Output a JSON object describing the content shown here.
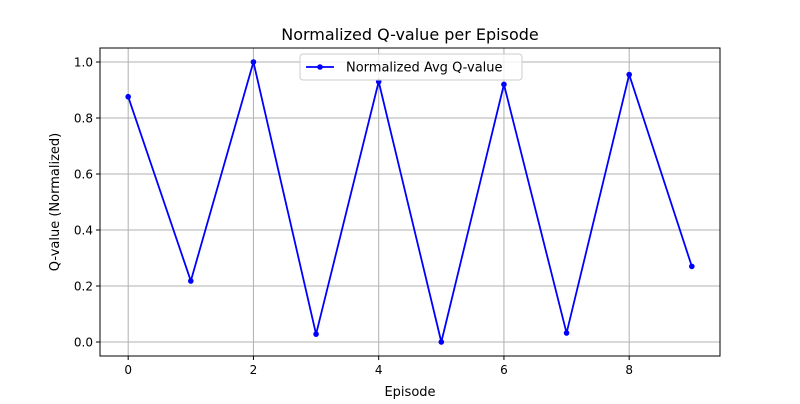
{
  "chart_data": {
    "type": "line",
    "title": "Normalized Q-value per Episode",
    "xlabel": "Episode",
    "ylabel": "Q-value (Normalized)",
    "xlim": [
      -0.45,
      9.45
    ],
    "ylim": [
      -0.05,
      1.05
    ],
    "x_ticks": [
      0,
      2,
      4,
      6,
      8
    ],
    "y_ticks": [
      0.0,
      0.2,
      0.4,
      0.6,
      0.8,
      1.0
    ],
    "x_tick_labels": [
      "0",
      "2",
      "4",
      "6",
      "8"
    ],
    "y_tick_labels": [
      "0.0",
      "0.2",
      "0.4",
      "0.6",
      "0.8",
      "1.0"
    ],
    "grid": true,
    "legend_position": "upper center",
    "series": [
      {
        "name": "Normalized Avg Q-value",
        "color": "#0000ff",
        "marker": "circle",
        "x": [
          0,
          1,
          2,
          3,
          4,
          5,
          6,
          7,
          8,
          9
        ],
        "values": [
          0.876,
          0.218,
          1.0,
          0.028,
          0.93,
          0.0,
          0.92,
          0.032,
          0.955,
          0.27
        ]
      }
    ]
  }
}
